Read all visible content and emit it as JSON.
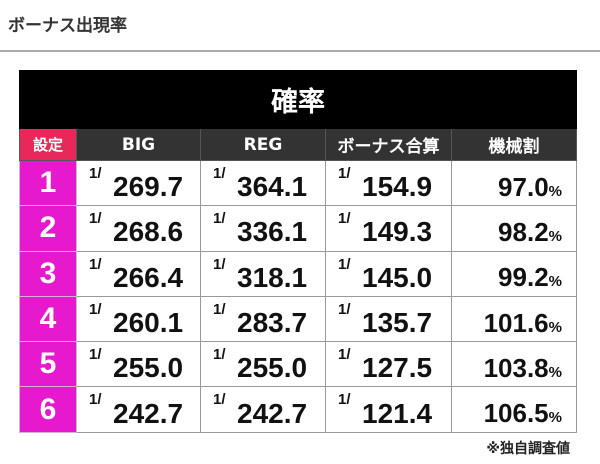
{
  "heading": "ボーナス出現率",
  "table": {
    "caption": "確率",
    "headers": [
      "設定",
      "BIG",
      "REG",
      "ボーナス合算",
      "機械割"
    ],
    "fraction_prefix": "1/",
    "percent_unit": "%",
    "rows": [
      {
        "setting": "1",
        "big": "269.7",
        "reg": "364.1",
        "combined": "154.9",
        "payout": "97.0"
      },
      {
        "setting": "2",
        "big": "268.6",
        "reg": "336.1",
        "combined": "149.3",
        "payout": "98.2"
      },
      {
        "setting": "3",
        "big": "266.4",
        "reg": "318.1",
        "combined": "145.0",
        "payout": "99.2"
      },
      {
        "setting": "4",
        "big": "260.1",
        "reg": "283.7",
        "combined": "135.7",
        "payout": "101.6"
      },
      {
        "setting": "5",
        "big": "255.0",
        "reg": "255.0",
        "combined": "127.5",
        "payout": "103.8"
      },
      {
        "setting": "6",
        "big": "242.7",
        "reg": "242.7",
        "combined": "121.4",
        "payout": "106.5"
      }
    ]
  },
  "note": "※独自調査値",
  "colors": {
    "setting_header": "#e8285a",
    "setting_cell": "#e619cf",
    "caption_bg": "#000000",
    "header_bg": "#333333"
  }
}
